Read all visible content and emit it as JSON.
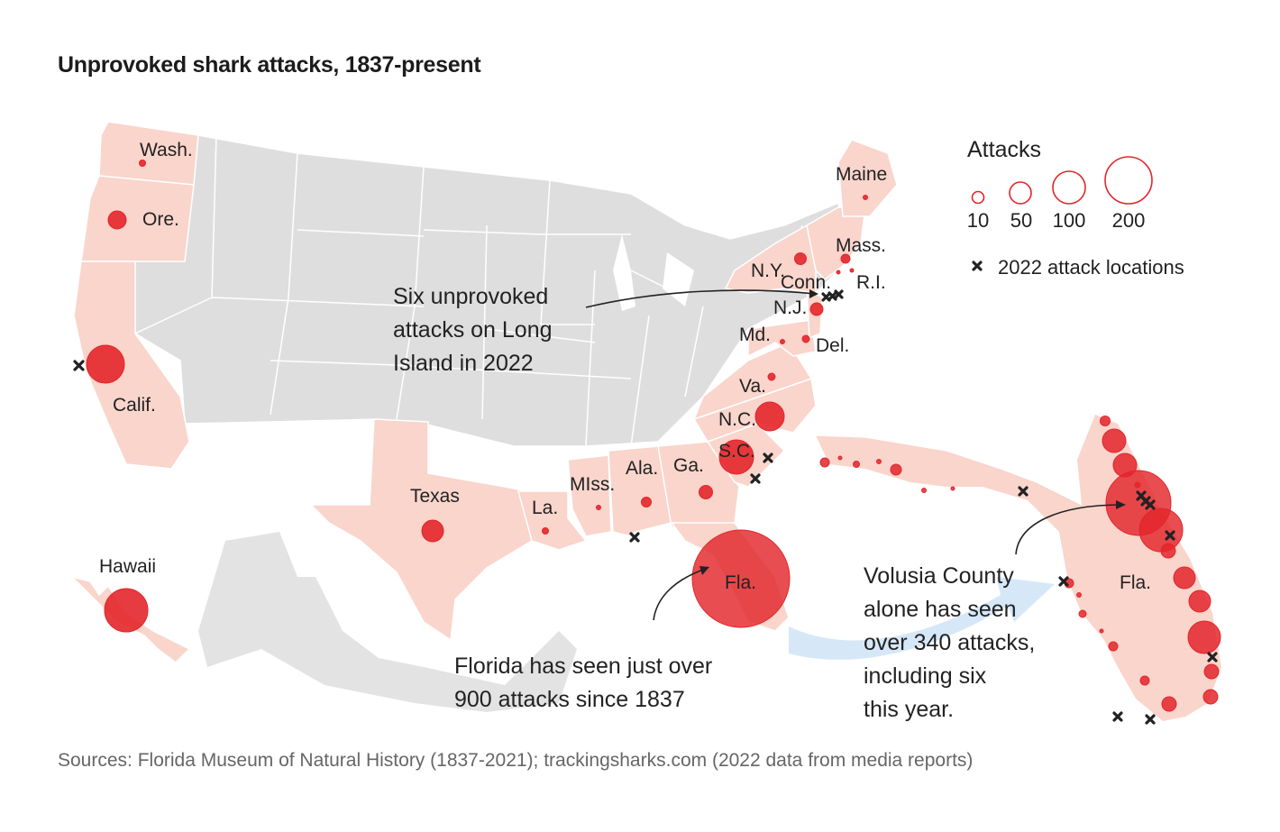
{
  "title": "Unprovoked shark attacks, 1837-present",
  "source": "Sources: Florida Museum of Natural History (1837-2021); trackingsharks.com (2022 data from media reports)",
  "colors": {
    "bubble": "#e3262b",
    "attack_state": "#f9d5cc",
    "other_state": "#dedede",
    "border": "#ffffff",
    "marker": "#222222",
    "flow_arrow": "#cfe4f7"
  },
  "legend": {
    "title": "Attacks",
    "sizes": [
      {
        "label": "10",
        "value": 10
      },
      {
        "label": "50",
        "value": 50
      },
      {
        "label": "100",
        "value": 100
      },
      {
        "label": "200",
        "value": 200
      }
    ],
    "marker_icon": "x-marker-icon",
    "marker_label": "2022 attack locations"
  },
  "state_labels": {
    "wash": "Wash.",
    "ore": "Ore.",
    "calif": "Calif.",
    "hawaii": "Hawaii",
    "texas": "Texas",
    "la": "La.",
    "miss": "MIss.",
    "ala": "Ala.",
    "ga": "Ga.",
    "sc": "S.C.",
    "nc": "N.C.",
    "va": "Va.",
    "md": "Md.",
    "del": "Del.",
    "nj": "N.J.",
    "ny": "N.Y.",
    "conn": "Conn.",
    "ri": "R.I.",
    "mass": "Mass.",
    "maine": "Maine",
    "fla": "Fla.",
    "fla_inset": "Fla."
  },
  "annotations": {
    "long_island": [
      "Six unprovoked",
      "attacks on Long",
      "Island in 2022"
    ],
    "florida": [
      "Florida has seen just over",
      "900 attacks since 1837"
    ],
    "volusia": [
      "Volusia County",
      "alone has seen",
      "over 340 attacks,",
      "including six",
      "this year."
    ]
  }
}
